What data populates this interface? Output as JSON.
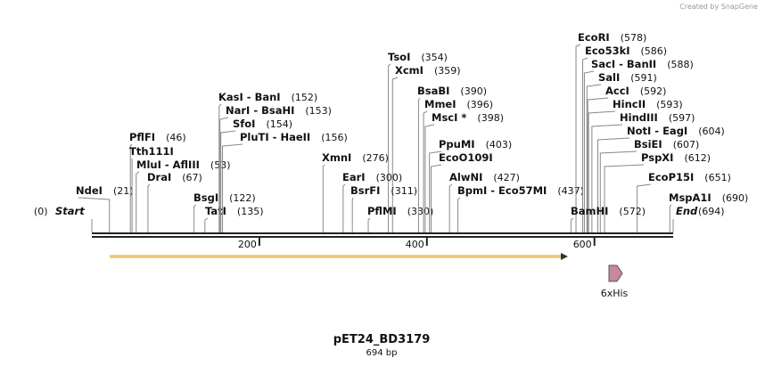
{
  "credit": "Created by SnapGene",
  "title": "pET24_BD3179",
  "subtitle": "694 bp",
  "start": {
    "label": "Start",
    "position": "(0)"
  },
  "end": {
    "label": "End",
    "position": "(694)"
  },
  "scale_ticks": [
    200,
    400,
    600
  ],
  "features": [
    {
      "label": "6xHis"
    }
  ],
  "sites": [
    {
      "name": "NdeI",
      "position": "(21)"
    },
    {
      "name": "PflFI",
      "position": "(46)"
    },
    {
      "name": "Tth111I"
    },
    {
      "name": "MluI - AflIII",
      "position": "(53)"
    },
    {
      "name": "DraI",
      "position": "(67)"
    },
    {
      "name": "BsgI",
      "position": "(122)"
    },
    {
      "name": "TatI",
      "position": "(135)"
    },
    {
      "name": "KasI - BanI",
      "position": "(152)"
    },
    {
      "name": "NarI - BsaHI",
      "position": "(153)"
    },
    {
      "name": "SfoI",
      "position": "(154)"
    },
    {
      "name": "PluTI - HaeII",
      "position": "(156)"
    },
    {
      "name": "XmnI",
      "position": "(276)"
    },
    {
      "name": "TsoI",
      "position": "(354)"
    },
    {
      "name": "XcmI",
      "position": "(359)"
    },
    {
      "name": "EarI",
      "position": "(300)"
    },
    {
      "name": "BsrFI",
      "position": "(311)"
    },
    {
      "name": "PflMI",
      "position": "(330)"
    },
    {
      "name": "BsaBI",
      "position": "(390)"
    },
    {
      "name": "MmeI",
      "position": "(396)"
    },
    {
      "name": "MscI *",
      "position": "(398)"
    },
    {
      "name": "PpuMI",
      "position": "(403)"
    },
    {
      "name": "EcoO109I"
    },
    {
      "name": "AlwNI",
      "position": "(427)"
    },
    {
      "name": "BpmI - Eco57MI",
      "position": "(437)"
    },
    {
      "name": "EcoRI",
      "position": "(578)"
    },
    {
      "name": "Eco53kI",
      "position": "(586)"
    },
    {
      "name": "SacI - BanII",
      "position": "(588)"
    },
    {
      "name": "SalI",
      "position": "(591)"
    },
    {
      "name": "AccI",
      "position": "(592)"
    },
    {
      "name": "HincII",
      "position": "(593)"
    },
    {
      "name": "HindIII",
      "position": "(597)"
    },
    {
      "name": "NotI - EagI",
      "position": "(604)"
    },
    {
      "name": "BsiEI",
      "position": "(607)"
    },
    {
      "name": "PspXI",
      "position": "(612)"
    },
    {
      "name": "EcoP15I",
      "position": "(651)"
    },
    {
      "name": "MspA1I",
      "position": "(690)"
    },
    {
      "name": "BamHI",
      "position": "(572)"
    }
  ]
}
